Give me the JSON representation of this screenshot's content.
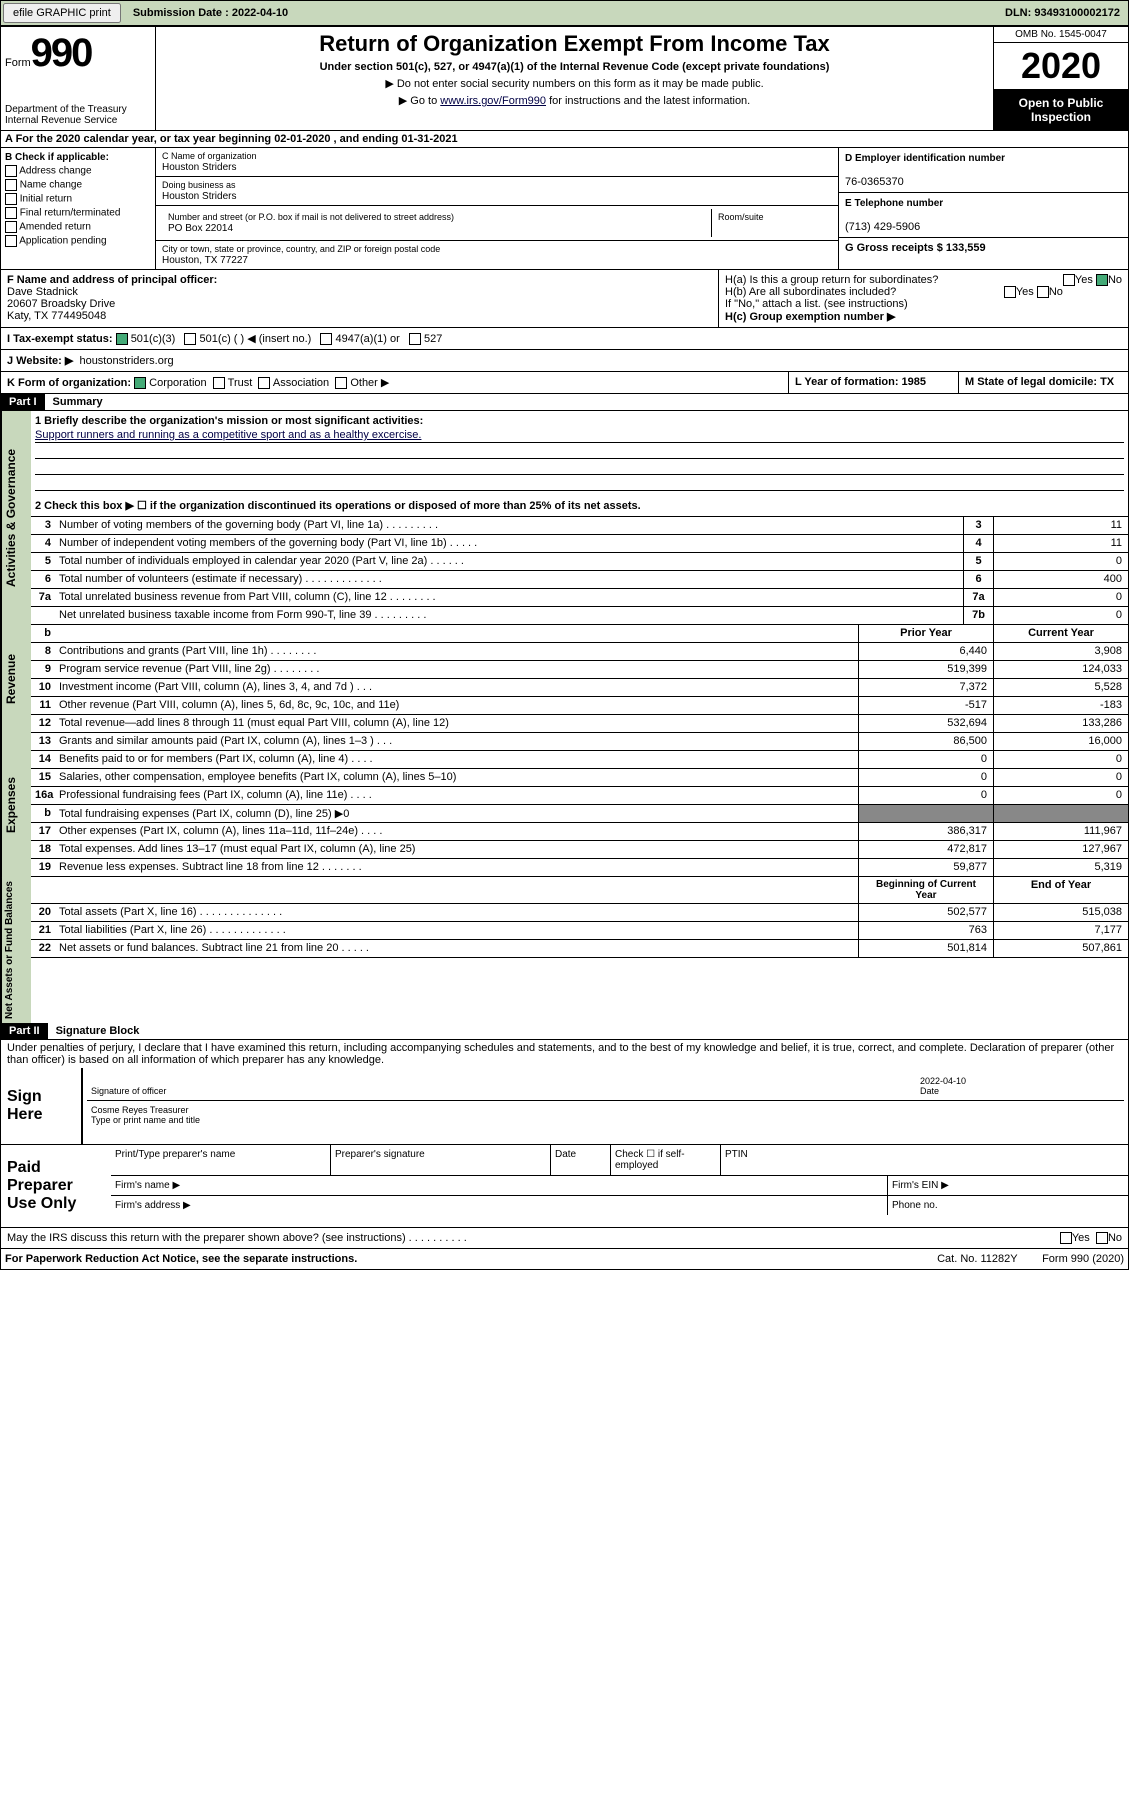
{
  "topbar": {
    "efile": "efile GRAPHIC print",
    "submission": "Submission Date : 2022-04-10",
    "dln": "DLN: 93493100002172"
  },
  "header": {
    "form_label": "Form",
    "form_num": "990",
    "dept": "Department of the Treasury\nInternal Revenue Service",
    "title": "Return of Organization Exempt From Income Tax",
    "sub1": "Under section 501(c), 527, or 4947(a)(1) of the Internal Revenue Code (except private foundations)",
    "sub2": "▶ Do not enter social security numbers on this form as it may be made public.",
    "sub3_pre": "▶ Go to ",
    "sub3_link": "www.irs.gov/Form990",
    "sub3_post": " for instructions and the latest information.",
    "omb": "OMB No. 1545-0047",
    "year": "2020",
    "inspect": "Open to Public Inspection"
  },
  "row_a": "A For the 2020 calendar year, or tax year beginning 02-01-2020    , and ending 01-31-2021",
  "col_b": {
    "header": "B Check if applicable:",
    "items": [
      "Address change",
      "Name change",
      "Initial return",
      "Final return/terminated",
      "Amended return",
      "Application pending"
    ]
  },
  "col_c": {
    "name_lbl": "C Name of organization",
    "name": "Houston Striders",
    "dba_lbl": "Doing business as",
    "dba": "Houston Striders",
    "addr_lbl": "Number and street (or P.O. box if mail is not delivered to street address)",
    "addr": "PO Box 22014",
    "room_lbl": "Room/suite",
    "city_lbl": "City or town, state or province, country, and ZIP or foreign postal code",
    "city": "Houston, TX  77227"
  },
  "col_d": {
    "ein_lbl": "D Employer identification number",
    "ein": "76-0365370",
    "phone_lbl": "E Telephone number",
    "phone": "(713) 429-5906",
    "gross_lbl": "G Gross receipts $ 133,559"
  },
  "section_f": {
    "lbl": "F  Name and address of principal officer:",
    "name": "Dave Stadnick",
    "addr1": "20607 Broadsky Drive",
    "addr2": "Katy, TX  774495048"
  },
  "section_h": {
    "ha": "H(a)  Is this a group return for subordinates?",
    "hb": "H(b)  Are all subordinates included?",
    "hb_note": "If \"No,\" attach a list. (see instructions)",
    "hc": "H(c)  Group exemption number ▶"
  },
  "row_i": {
    "label": "I   Tax-exempt status:",
    "opts": [
      "501(c)(3)",
      "501(c) (  ) ◀ (insert no.)",
      "4947(a)(1) or",
      "527"
    ]
  },
  "row_j": {
    "label": "J   Website: ▶",
    "value": "houstonstriders.org"
  },
  "row_k": {
    "label": "K Form of organization:",
    "opts": [
      "Corporation",
      "Trust",
      "Association",
      "Other ▶"
    ],
    "l": "L Year of formation: 1985",
    "m": "M State of legal domicile: TX"
  },
  "part1": {
    "label": "Part I",
    "title": "Summary"
  },
  "mission": {
    "q1": "1  Briefly describe the organization's mission or most significant activities:",
    "text": "Support runners and running as a competitive sport and as a healthy excercise.",
    "q2": "2   Check this box ▶ ☐ if the organization discontinued its operations or disposed of more than 25% of its net assets."
  },
  "gov_lines": [
    {
      "n": "3",
      "txt": "Number of voting members of the governing body (Part VI, line 1a)   .    .    .    .    .    .    .    .    .",
      "code": "3",
      "val": "11"
    },
    {
      "n": "4",
      "txt": "Number of independent voting members of the governing body (Part VI, line 1b)   .    .    .    .    .",
      "code": "4",
      "val": "11"
    },
    {
      "n": "5",
      "txt": "Total number of individuals employed in calendar year 2020 (Part V, line 2a)   .    .    .    .    .    .",
      "code": "5",
      "val": "0"
    },
    {
      "n": "6",
      "txt": "Total number of volunteers (estimate if necessary)   .    .    .    .    .    .    .    .    .    .    .    .    .",
      "code": "6",
      "val": "400"
    },
    {
      "n": "7a",
      "txt": "Total unrelated business revenue from Part VIII, column (C), line 12   .    .    .    .    .    .    .    .",
      "code": "7a",
      "val": "0"
    },
    {
      "n": "",
      "txt": "Net unrelated business taxable income from Form 990-T, line 39   .    .    .    .    .    .    .    .    .",
      "code": "7b",
      "val": "0"
    }
  ],
  "headers": {
    "b": "b",
    "prior": "Prior Year",
    "current": "Current Year",
    "begin": "Beginning of Current Year",
    "end": "End of Year"
  },
  "rev_lines": [
    {
      "n": "8",
      "txt": "Contributions and grants (Part VIII, line 1h)   .    .    .    .    .    .    .    .",
      "p": "6,440",
      "c": "3,908"
    },
    {
      "n": "9",
      "txt": "Program service revenue (Part VIII, line 2g)   .    .    .    .    .    .    .    .",
      "p": "519,399",
      "c": "124,033"
    },
    {
      "n": "10",
      "txt": "Investment income (Part VIII, column (A), lines 3, 4, and 7d )   .    .    .",
      "p": "7,372",
      "c": "5,528"
    },
    {
      "n": "11",
      "txt": "Other revenue (Part VIII, column (A), lines 5, 6d, 8c, 9c, 10c, and 11e)",
      "p": "-517",
      "c": "-183"
    },
    {
      "n": "12",
      "txt": "Total revenue—add lines 8 through 11 (must equal Part VIII, column (A), line 12)",
      "p": "532,694",
      "c": "133,286"
    }
  ],
  "exp_lines": [
    {
      "n": "13",
      "txt": "Grants and similar amounts paid (Part IX, column (A), lines 1–3 )   .    .    .",
      "p": "86,500",
      "c": "16,000"
    },
    {
      "n": "14",
      "txt": "Benefits paid to or for members (Part IX, column (A), line 4)   .    .    .    .",
      "p": "0",
      "c": "0"
    },
    {
      "n": "15",
      "txt": "Salaries, other compensation, employee benefits (Part IX, column (A), lines 5–10)",
      "p": "0",
      "c": "0"
    },
    {
      "n": "16a",
      "txt": "Professional fundraising fees (Part IX, column (A), line 11e)   .    .    .    .",
      "p": "0",
      "c": "0"
    },
    {
      "n": "b",
      "txt": "Total fundraising expenses (Part IX, column (D), line 25) ▶0",
      "p": "gray",
      "c": "gray"
    },
    {
      "n": "17",
      "txt": "Other expenses (Part IX, column (A), lines 11a–11d, 11f–24e)   .    .    .    .",
      "p": "386,317",
      "c": "111,967"
    },
    {
      "n": "18",
      "txt": "Total expenses. Add lines 13–17 (must equal Part IX, column (A), line 25)",
      "p": "472,817",
      "c": "127,967"
    },
    {
      "n": "19",
      "txt": "Revenue less expenses. Subtract line 18 from line 12   .    .    .    .    .    .    .",
      "p": "59,877",
      "c": "5,319"
    }
  ],
  "net_lines": [
    {
      "n": "20",
      "txt": "Total assets (Part X, line 16)   .    .    .    .    .    .    .    .    .    .    .    .    .    .",
      "p": "502,577",
      "c": "515,038"
    },
    {
      "n": "21",
      "txt": "Total liabilities (Part X, line 26)   .    .    .    .    .    .    .    .    .    .    .    .    .",
      "p": "763",
      "c": "7,177"
    },
    {
      "n": "22",
      "txt": "Net assets or fund balances. Subtract line 21 from line 20   .    .    .    .    .",
      "p": "501,814",
      "c": "507,861"
    }
  ],
  "side_labels": {
    "gov": "Activities & Governance",
    "rev": "Revenue",
    "exp": "Expenses",
    "net": "Net Assets or Fund Balances"
  },
  "part2": {
    "label": "Part II",
    "title": "Signature Block"
  },
  "perjury": "Under penalties of perjury, I declare that I have examined this return, including accompanying schedules and statements, and to the best of my knowledge and belief, it is true, correct, and complete. Declaration of preparer (other than officer) is based on all information of which preparer has any knowledge.",
  "sign": {
    "label": "Sign Here",
    "sig_lbl": "Signature of officer",
    "date": "2022-04-10",
    "date_lbl": "Date",
    "name": "Cosme Reyes Treasurer",
    "name_lbl": "Type or print name and title"
  },
  "paid": {
    "label": "Paid Preparer Use Only",
    "col1": "Print/Type preparer's name",
    "col2": "Preparer's signature",
    "col3": "Date",
    "col4": "Check ☐ if self-employed",
    "col5": "PTIN",
    "firm": "Firm's name    ▶",
    "ein": "Firm's EIN ▶",
    "addr": "Firm's address ▶",
    "phone": "Phone no."
  },
  "irs_discuss": "May the IRS discuss this return with the preparer shown above? (see instructions)   .    .    .    .    .    .    .    .    .    .",
  "footer": {
    "paperwork": "For Paperwork Reduction Act Notice, see the separate instructions.",
    "cat": "Cat. No. 11282Y",
    "form": "Form 990 (2020)"
  },
  "yesno": {
    "yes": "Yes",
    "no": "No"
  }
}
